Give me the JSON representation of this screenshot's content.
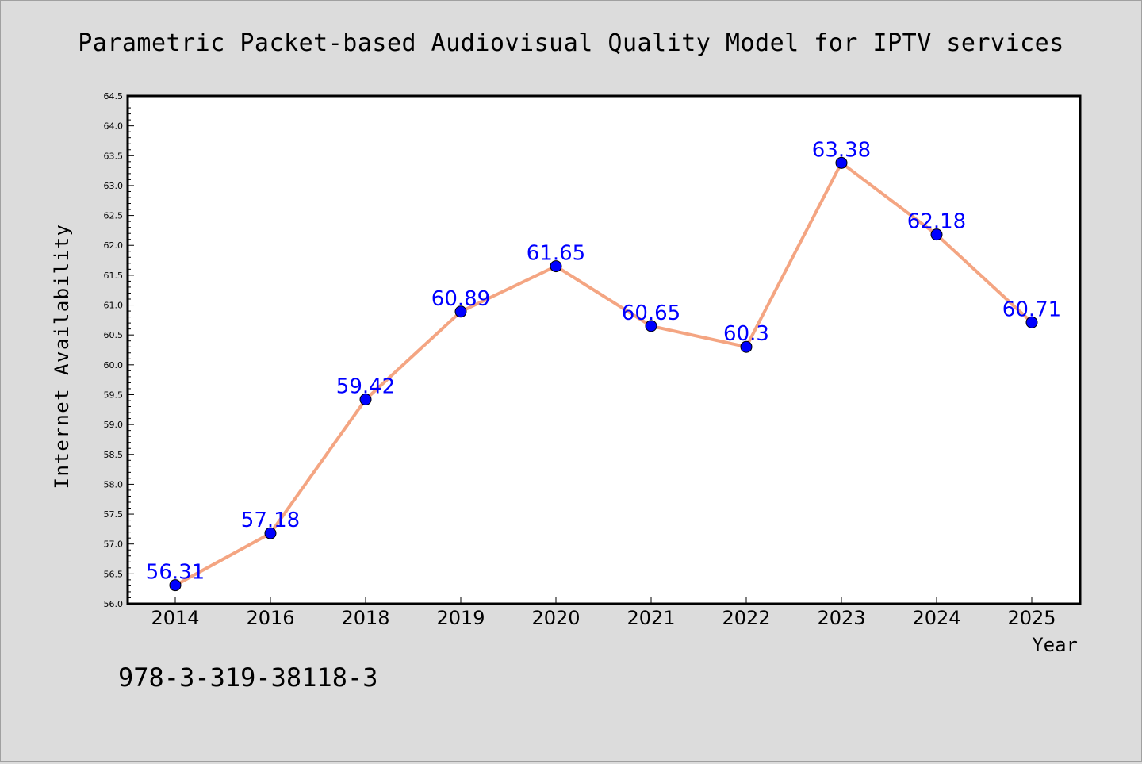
{
  "page": {
    "title": "Parametric Packet-based Audiovisual Quality Model for IPTV services",
    "footer_text": "978-3-319-38118-3"
  },
  "colors": {
    "background": "#dcdcdc",
    "plot_background": "#ffffff",
    "line": "#f4a582",
    "marker": "#0000ff",
    "data_label": "#0000ff"
  },
  "chart_data": {
    "type": "line",
    "title": "Parametric Packet-based Audiovisual Quality Model for IPTV services",
    "xlabel": "Year",
    "ylabel": "Internet Availability",
    "categories": [
      "2014",
      "2016",
      "2018",
      "2019",
      "2020",
      "2021",
      "2022",
      "2023",
      "2024",
      "2025"
    ],
    "series": [
      {
        "values": [
          56.31,
          57.18,
          59.42,
          60.89,
          61.65,
          60.65,
          60.3,
          63.38,
          62.18,
          60.71
        ],
        "data_labels": [
          "56.31",
          "57.18",
          "59.42",
          "60.89",
          "61.65",
          "60.65",
          "60.3",
          "63.38",
          "62.18",
          "60.71"
        ],
        "marker": "circle"
      }
    ],
    "ylim": [
      56.0,
      64.5
    ],
    "yticks": [
      "56.0",
      "56.5",
      "57.0",
      "57.5",
      "58.0",
      "58.5",
      "59.0",
      "59.5",
      "60.0",
      "60.5",
      "61.0",
      "61.5",
      "62.0",
      "62.5",
      "63.0",
      "63.5",
      "64.0",
      "64.5"
    ],
    "grid": false,
    "legend": "none"
  }
}
